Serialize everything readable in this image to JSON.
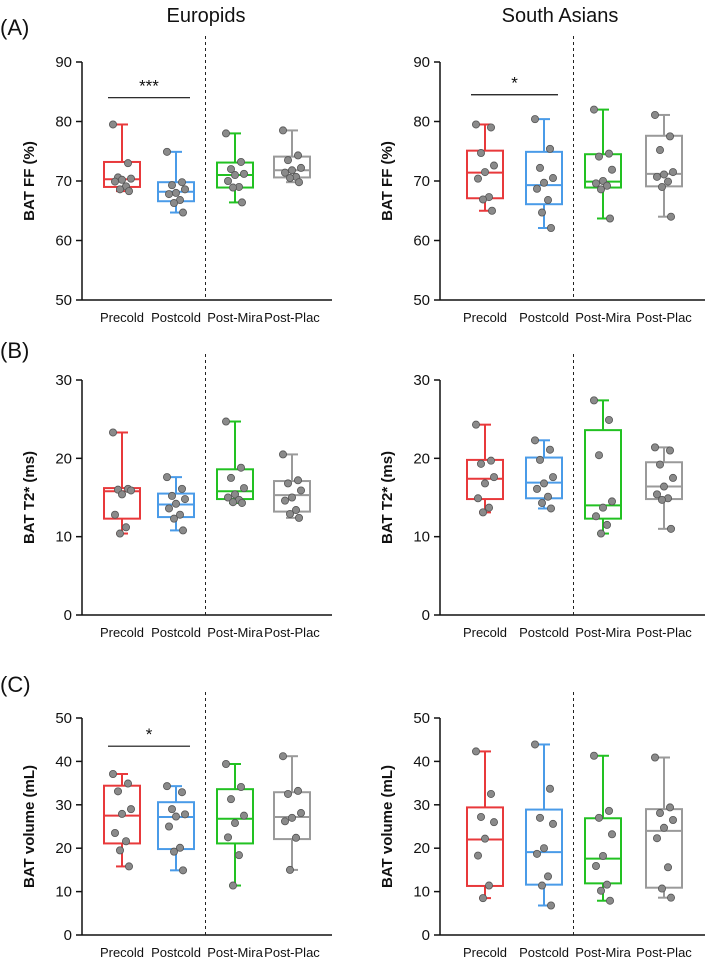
{
  "columns": [
    "Europids",
    "South Asians"
  ],
  "panel_labels": [
    "(A)",
    "(B)",
    "(C)"
  ],
  "colors": {
    "Precold": "#e8393b",
    "Postcold": "#4a9be8",
    "Post-Mira": "#22c122",
    "Post-Plac": "#9a9a9a",
    "point_fill": "#8a8a8a",
    "point_stroke": "#555555",
    "axis": "#111111"
  },
  "chart_data": [
    {
      "type": "boxplot",
      "panel": "(A)",
      "group": "Europids",
      "ylabel": "BAT FF (%)",
      "ylim": [
        50,
        90
      ],
      "yticks": [
        50,
        60,
        70,
        80,
        90
      ],
      "categories": [
        "Precold",
        "Postcold",
        "Post-Mira",
        "Post-Plac"
      ],
      "boxes": [
        {
          "min": 68.3,
          "q1": 69.0,
          "median": 70.3,
          "q3": 73.2,
          "max": 79.5,
          "points": [
            79.5,
            73.0,
            70.6,
            70.4,
            70.2,
            69.9,
            69.1,
            68.6,
            68.3
          ]
        },
        {
          "min": 64.7,
          "q1": 66.6,
          "median": 68.2,
          "q3": 69.8,
          "max": 74.9,
          "points": [
            74.9,
            69.8,
            69.3,
            68.6,
            68.0,
            67.8,
            66.8,
            66.3,
            64.7
          ]
        },
        {
          "min": 66.4,
          "q1": 68.9,
          "median": 71.0,
          "q3": 73.1,
          "max": 78.0,
          "points": [
            78.0,
            73.2,
            72.0,
            71.2,
            71.0,
            70.0,
            69.0,
            68.9,
            66.4
          ]
        },
        {
          "min": 69.8,
          "q1": 70.6,
          "median": 71.8,
          "q3": 74.1,
          "max": 78.5,
          "points": [
            78.5,
            74.3,
            73.5,
            72.2,
            71.8,
            71.4,
            70.7,
            70.5,
            69.8
          ]
        }
      ],
      "significance": [
        {
          "from": 0,
          "to": 1,
          "label": "***",
          "y": 84
        }
      ],
      "separator_after": 1
    },
    {
      "type": "boxplot",
      "panel": "(A)",
      "group": "South Asians",
      "ylabel": "BAT FF (%)",
      "ylim": [
        50,
        90
      ],
      "yticks": [
        50,
        60,
        70,
        80,
        90
      ],
      "categories": [
        "Precold",
        "Postcold",
        "Post-Mira",
        "Post-Plac"
      ],
      "boxes": [
        {
          "min": 65.0,
          "q1": 67.1,
          "median": 71.4,
          "q3": 75.1,
          "max": 79.5,
          "points": [
            79.5,
            79.0,
            74.7,
            72.6,
            71.5,
            70.4,
            67.3,
            66.9,
            65.0
          ]
        },
        {
          "min": 62.1,
          "q1": 66.1,
          "median": 69.3,
          "q3": 74.9,
          "max": 80.4,
          "points": [
            80.4,
            75.4,
            72.2,
            70.5,
            69.7,
            68.7,
            66.8,
            64.7,
            62.1
          ]
        },
        {
          "min": 63.7,
          "q1": 68.9,
          "median": 69.9,
          "q3": 74.5,
          "max": 82.0,
          "points": [
            82.0,
            74.6,
            74.1,
            71.9,
            70.0,
            69.6,
            69.2,
            68.6,
            63.7
          ]
        },
        {
          "min": 64.0,
          "q1": 69.1,
          "median": 71.2,
          "q3": 77.6,
          "max": 81.1,
          "points": [
            81.1,
            77.5,
            75.2,
            71.5,
            71.1,
            70.7,
            69.9,
            69.0,
            64.0
          ]
        }
      ],
      "significance": [
        {
          "from": 0,
          "to": 1,
          "label": "*",
          "y": 84.5
        }
      ],
      "separator_after": 1
    },
    {
      "type": "boxplot",
      "panel": "(B)",
      "group": "Europids",
      "ylabel": "BAT T2* (ms)",
      "ylim": [
        0,
        30
      ],
      "yticks": [
        0,
        10,
        20,
        30
      ],
      "categories": [
        "Precold",
        "Postcold",
        "Post-Mira",
        "Post-Plac"
      ],
      "boxes": [
        {
          "min": 10.4,
          "q1": 12.3,
          "median": 15.8,
          "q3": 16.2,
          "max": 23.3,
          "points": [
            23.3,
            16.1,
            16.0,
            15.9,
            15.4,
            12.8,
            11.2,
            10.4
          ]
        },
        {
          "min": 10.8,
          "q1": 12.5,
          "median": 14.1,
          "q3": 15.5,
          "max": 17.6,
          "points": [
            17.6,
            16.1,
            15.2,
            14.8,
            14.2,
            13.6,
            12.8,
            12.3,
            10.8
          ]
        },
        {
          "min": 14.3,
          "q1": 14.8,
          "median": 15.8,
          "q3": 18.6,
          "max": 24.7,
          "points": [
            24.7,
            18.8,
            17.5,
            16.2,
            15.4,
            15.0,
            14.7,
            14.4,
            14.3
          ]
        },
        {
          "min": 12.4,
          "q1": 13.2,
          "median": 15.3,
          "q3": 17.1,
          "max": 20.5,
          "points": [
            20.5,
            17.2,
            16.8,
            15.9,
            15.0,
            14.6,
            13.4,
            12.9,
            12.4
          ]
        }
      ],
      "significance": [],
      "separator_after": 1
    },
    {
      "type": "boxplot",
      "panel": "(B)",
      "group": "South Asians",
      "ylabel": "BAT T2* (ms)",
      "ylim": [
        0,
        30
      ],
      "yticks": [
        0,
        10,
        20,
        30
      ],
      "categories": [
        "Precold",
        "Postcold",
        "Post-Mira",
        "Post-Plac"
      ],
      "boxes": [
        {
          "min": 13.1,
          "q1": 14.8,
          "median": 17.4,
          "q3": 19.8,
          "max": 24.3,
          "points": [
            24.3,
            19.7,
            19.3,
            17.6,
            16.8,
            14.9,
            13.7,
            13.1
          ]
        },
        {
          "min": 13.6,
          "q1": 14.9,
          "median": 16.9,
          "q3": 20.1,
          "max": 22.3,
          "points": [
            22.3,
            21.1,
            19.8,
            17.6,
            16.8,
            16.1,
            15.1,
            14.3,
            13.6
          ]
        },
        {
          "min": 10.4,
          "q1": 12.3,
          "median": 14.0,
          "q3": 23.6,
          "max": 27.4,
          "points": [
            27.4,
            24.9,
            20.4,
            14.5,
            13.7,
            12.6,
            11.5,
            10.4
          ]
        },
        {
          "min": 11.0,
          "q1": 14.8,
          "median": 16.4,
          "q3": 19.5,
          "max": 21.4,
          "points": [
            21.4,
            21.0,
            19.2,
            17.5,
            16.4,
            15.4,
            14.9,
            14.7,
            11.0
          ]
        }
      ],
      "significance": [],
      "separator_after": 1
    },
    {
      "type": "boxplot",
      "panel": "(C)",
      "group": "Europids",
      "ylabel": "BAT volume (mL)",
      "ylim": [
        0,
        50
      ],
      "yticks": [
        0,
        10,
        20,
        30,
        40,
        50
      ],
      "categories": [
        "Precold",
        "Postcold",
        "Post-Mira",
        "Post-Plac"
      ],
      "boxes": [
        {
          "min": 15.8,
          "q1": 21.1,
          "median": 27.5,
          "q3": 34.4,
          "max": 37.1,
          "points": [
            37.1,
            34.9,
            33.1,
            29.0,
            27.9,
            23.5,
            21.6,
            19.5,
            15.8
          ]
        },
        {
          "min": 14.9,
          "q1": 19.8,
          "median": 27.2,
          "q3": 30.6,
          "max": 34.3,
          "points": [
            34.3,
            32.9,
            29.0,
            27.8,
            27.3,
            25.0,
            20.1,
            19.2,
            14.9
          ]
        },
        {
          "min": 11.4,
          "q1": 21.1,
          "median": 26.8,
          "q3": 33.6,
          "max": 39.4,
          "points": [
            39.4,
            34.1,
            31.3,
            27.5,
            25.8,
            22.5,
            18.4,
            11.4
          ]
        },
        {
          "min": 15.0,
          "q1": 22.1,
          "median": 27.2,
          "q3": 32.9,
          "max": 41.2,
          "points": [
            41.2,
            33.2,
            32.5,
            28.1,
            27.0,
            26.2,
            22.4,
            15.0
          ]
        }
      ],
      "significance": [
        {
          "from": 0,
          "to": 1,
          "label": "*",
          "y": 43.5
        }
      ],
      "separator_after": 1
    },
    {
      "type": "boxplot",
      "panel": "(C)",
      "group": "South Asians",
      "ylabel": "BAT volume (mL)",
      "ylim": [
        0,
        50
      ],
      "yticks": [
        0,
        10,
        20,
        30,
        40,
        50
      ],
      "categories": [
        "Precold",
        "Postcold",
        "Post-Mira",
        "Post-Plac"
      ],
      "boxes": [
        {
          "min": 8.5,
          "q1": 11.3,
          "median": 22.0,
          "q3": 29.4,
          "max": 42.3,
          "points": [
            42.3,
            32.5,
            27.2,
            26.0,
            22.2,
            18.3,
            11.4,
            8.5
          ]
        },
        {
          "min": 6.8,
          "q1": 11.6,
          "median": 19.1,
          "q3": 28.9,
          "max": 43.9,
          "points": [
            43.9,
            33.7,
            27.0,
            25.6,
            20.0,
            18.7,
            13.5,
            11.4,
            6.8
          ]
        },
        {
          "min": 7.9,
          "q1": 11.9,
          "median": 17.6,
          "q3": 26.9,
          "max": 41.3,
          "points": [
            41.3,
            28.6,
            27.0,
            23.2,
            18.2,
            15.9,
            11.6,
            10.2,
            7.9
          ]
        },
        {
          "min": 8.6,
          "q1": 10.9,
          "median": 24.0,
          "q3": 29.0,
          "max": 40.9,
          "points": [
            40.9,
            29.4,
            28.1,
            26.5,
            24.7,
            22.3,
            15.6,
            10.7,
            8.6
          ]
        }
      ],
      "significance": [],
      "separator_after": 1
    }
  ]
}
